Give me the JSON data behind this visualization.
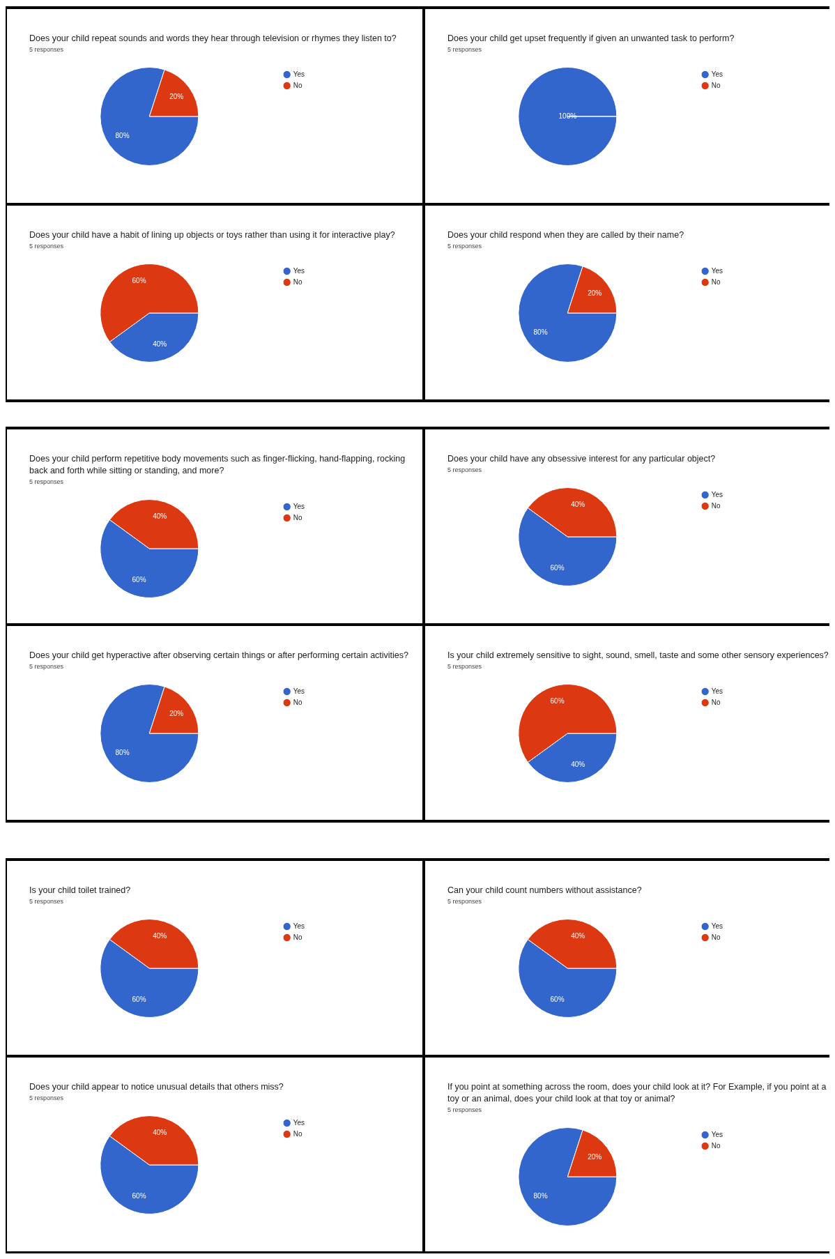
{
  "chart_data": [
    {
      "type": "pie",
      "title": "Does your child repeat sounds and words they hear through television or rhymes they listen to?",
      "subtitle": "5 responses",
      "categories": [
        "Yes",
        "No"
      ],
      "values": [
        80,
        20
      ],
      "colors": [
        "#3366cc",
        "#dc3912"
      ],
      "value_labels": [
        "80%",
        "20%"
      ],
      "legend": "right"
    },
    {
      "type": "pie",
      "title": "Does your child get upset frequently if given an unwanted task to perform?",
      "subtitle": "5 responses",
      "categories": [
        "Yes",
        "No"
      ],
      "values": [
        100,
        0
      ],
      "colors": [
        "#3366cc",
        "#dc3912"
      ],
      "value_labels": [
        "100%",
        null
      ],
      "legend": "right"
    },
    {
      "type": "pie",
      "title": "Does your child have a habit of lining up objects or toys rather than using it for interactive play?",
      "subtitle": "5 responses",
      "categories": [
        "Yes",
        "No"
      ],
      "values": [
        40,
        60
      ],
      "colors": [
        "#3366cc",
        "#dc3912"
      ],
      "value_labels": [
        "40%",
        "60%"
      ],
      "legend": "right"
    },
    {
      "type": "pie",
      "title": "Does your child respond when they are called by their name?",
      "subtitle": "5 responses",
      "categories": [
        "Yes",
        "No"
      ],
      "values": [
        80,
        20
      ],
      "colors": [
        "#3366cc",
        "#dc3912"
      ],
      "value_labels": [
        "80%",
        "20%"
      ],
      "legend": "right"
    },
    {
      "type": "pie",
      "title": "Does your child perform repetitive body movements such as finger-flicking, hand-flapping, rocking back and forth while sitting or standing, and more?",
      "subtitle": "5 responses",
      "categories": [
        "Yes",
        "No"
      ],
      "values": [
        60,
        40
      ],
      "colors": [
        "#3366cc",
        "#dc3912"
      ],
      "value_labels": [
        "60%",
        "40%"
      ],
      "legend": "right"
    },
    {
      "type": "pie",
      "title": "Does your child have any obsessive interest for any particular object?",
      "subtitle": "5 responses",
      "categories": [
        "Yes",
        "No"
      ],
      "values": [
        60,
        40
      ],
      "colors": [
        "#3366cc",
        "#dc3912"
      ],
      "value_labels": [
        "60%",
        "40%"
      ],
      "legend": "right"
    },
    {
      "type": "pie",
      "title": "Does your child get hyperactive after observing certain things or after performing certain activities?",
      "subtitle": "5 responses",
      "categories": [
        "Yes",
        "No"
      ],
      "values": [
        80,
        20
      ],
      "colors": [
        "#3366cc",
        "#dc3912"
      ],
      "value_labels": [
        "80%",
        "20%"
      ],
      "legend": "right"
    },
    {
      "type": "pie",
      "title": "Is your child extremely sensitive to sight, sound, smell, taste and some other sensory experiences?",
      "subtitle": "5 responses",
      "categories": [
        "Yes",
        "No"
      ],
      "values": [
        40,
        60
      ],
      "colors": [
        "#3366cc",
        "#dc3912"
      ],
      "value_labels": [
        "40%",
        "60%"
      ],
      "legend": "right"
    },
    {
      "type": "pie",
      "title": "Is your child toilet trained?",
      "subtitle": "5 responses",
      "categories": [
        "Yes",
        "No"
      ],
      "values": [
        60,
        40
      ],
      "colors": [
        "#3366cc",
        "#dc3912"
      ],
      "value_labels": [
        "60%",
        "40%"
      ],
      "legend": "right"
    },
    {
      "type": "pie",
      "title": "Can your child count numbers without assistance?",
      "subtitle": "5 responses",
      "categories": [
        "Yes",
        "No"
      ],
      "values": [
        60,
        40
      ],
      "colors": [
        "#3366cc",
        "#dc3912"
      ],
      "value_labels": [
        "60%",
        "40%"
      ],
      "legend": "right"
    },
    {
      "type": "pie",
      "title": "Does your child appear to notice unusual details that others miss?",
      "subtitle": "5 responses",
      "categories": [
        "Yes",
        "No"
      ],
      "values": [
        60,
        40
      ],
      "colors": [
        "#3366cc",
        "#dc3912"
      ],
      "value_labels": [
        "60%",
        "40%"
      ],
      "legend": "right"
    },
    {
      "type": "pie",
      "title": "If you point at something across the room, does your child look at it? For Example, if you point at a toy or an animal, does your child look at that toy or animal?",
      "subtitle": "5 responses",
      "categories": [
        "Yes",
        "No"
      ],
      "values": [
        80,
        20
      ],
      "colors": [
        "#3366cc",
        "#dc3912"
      ],
      "value_labels": [
        "80%",
        "20%"
      ],
      "legend": "right"
    }
  ]
}
